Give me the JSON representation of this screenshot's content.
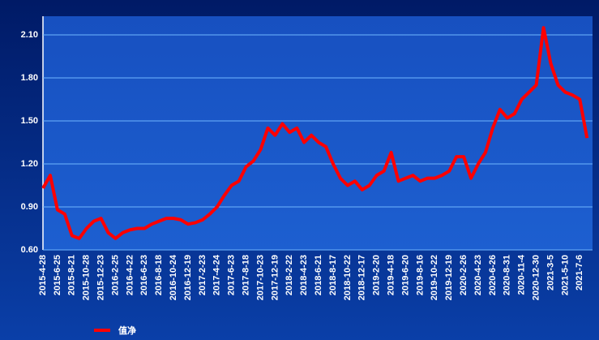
{
  "chart_data": {
    "type": "line",
    "x": [
      "2015-4-28",
      null,
      "2015-6-25",
      null,
      "2015-8-21",
      null,
      "2015-10-28",
      null,
      "2015-12-23",
      null,
      "2016-2-25",
      null,
      "2016-4-22",
      null,
      "2016-6-23",
      null,
      "2016-8-18",
      null,
      "2016-10-24",
      null,
      "2016-12-19",
      null,
      "2017-2-23",
      null,
      "2017-4-24",
      null,
      "2017-6-23",
      null,
      "2017-8-18",
      null,
      "2017-10-23",
      null,
      "2017-12-19",
      null,
      "2018-2-22",
      null,
      "2018-4-23",
      null,
      "2018-6-21",
      null,
      "2018-8-17",
      null,
      "2018-10-22",
      null,
      "2018-12-17",
      null,
      "2019-2-20",
      null,
      "2019-4-18",
      null,
      "2019-6-20",
      null,
      "2019-8-16",
      null,
      "2019-10-22",
      null,
      "2019-12-19",
      null,
      "2020-2-26",
      null,
      "2020-4-23",
      null,
      "2020-6-26",
      null,
      "2020-8-31",
      null,
      "2020-11-4",
      null,
      "2020-12-30",
      null,
      "2021-3-5",
      null,
      "2021-5-10",
      null,
      "2021-7-6",
      null
    ],
    "series": [
      {
        "name": "值净",
        "color": "#ff0000",
        "values": [
          1.03,
          1.12,
          0.88,
          0.85,
          0.7,
          0.68,
          0.75,
          0.8,
          0.82,
          0.72,
          0.68,
          0.72,
          0.74,
          0.75,
          0.75,
          0.78,
          0.8,
          0.82,
          0.82,
          0.81,
          0.78,
          0.79,
          0.81,
          0.85,
          0.9,
          0.98,
          1.05,
          1.08,
          1.18,
          1.22,
          1.3,
          1.45,
          1.4,
          1.48,
          1.42,
          1.45,
          1.35,
          1.4,
          1.35,
          1.32,
          1.2,
          1.1,
          1.05,
          1.08,
          1.02,
          1.05,
          1.12,
          1.15,
          1.28,
          1.08,
          1.1,
          1.12,
          1.08,
          1.1,
          1.1,
          1.12,
          1.15,
          1.25,
          1.25,
          1.1,
          1.2,
          1.28,
          1.45,
          1.58,
          1.52,
          1.55,
          1.65,
          1.7,
          1.75,
          2.15,
          1.9,
          1.75,
          1.7,
          1.68,
          1.65,
          1.38
        ]
      }
    ],
    "ylim": [
      0.6,
      2.23
    ],
    "yticks": [
      {
        "value": 0.6,
        "label": "0.60"
      },
      {
        "value": 0.9,
        "label": "0.90"
      },
      {
        "value": 1.2,
        "label": "1.20"
      },
      {
        "value": 1.5,
        "label": "1.50"
      },
      {
        "value": 1.8,
        "label": "1.80"
      },
      {
        "value": 2.1,
        "label": "2.10"
      }
    ],
    "grid": true
  }
}
